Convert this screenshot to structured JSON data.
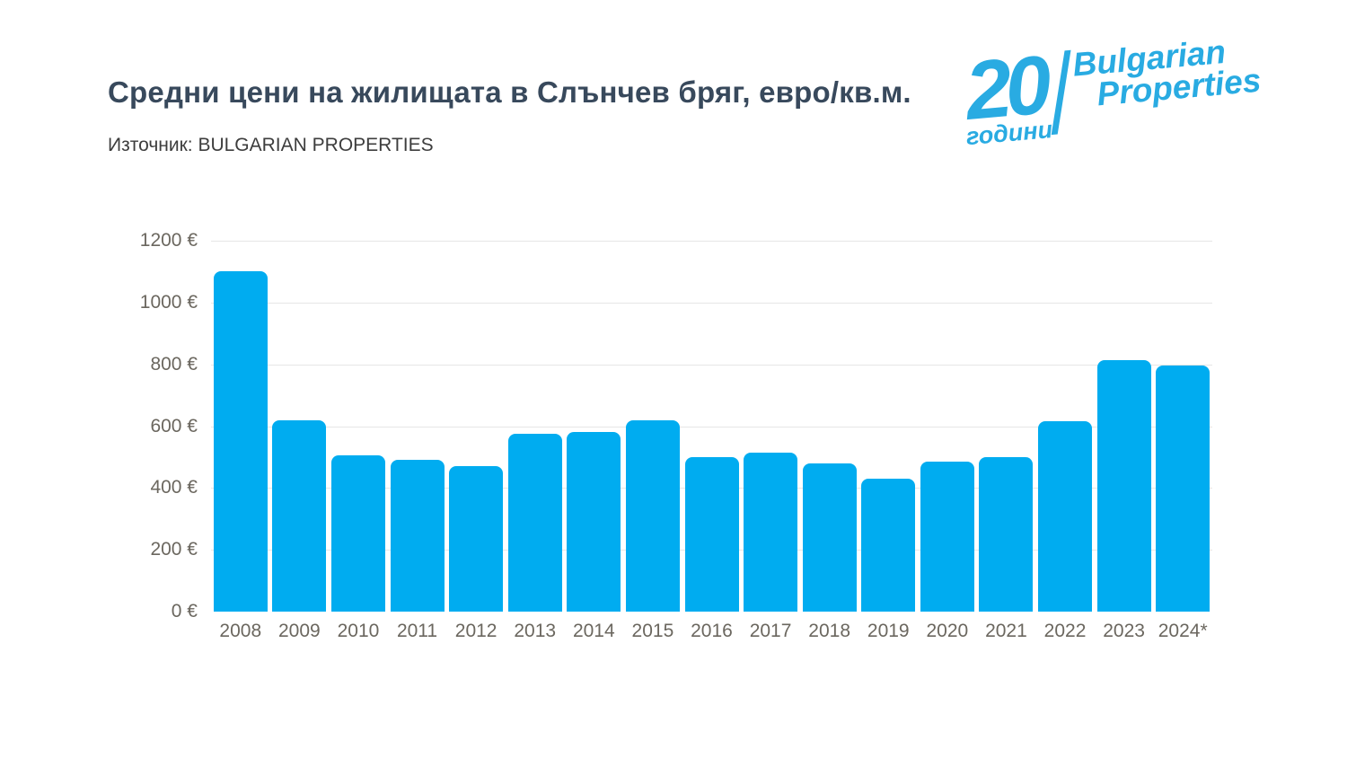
{
  "header": {
    "title": "Средни цени на жилищата в Слънчев бряг, евро/кв.м.",
    "source": "Източник: BULGARIAN PROPERTIES"
  },
  "logo": {
    "number": "20",
    "years_label": "години",
    "brand_line1": "Bulgarian",
    "brand_line2": "Properties",
    "color": "#29abe2"
  },
  "chart_data": {
    "type": "bar",
    "title": "Средни цени на жилищата в Слънчев бряг, евро/кв.м.",
    "source_label": "Източник: BULGARIAN PROPERTIES",
    "unit": "евро/кв.м.",
    "categories": [
      "2008",
      "2009",
      "2010",
      "2011",
      "2012",
      "2013",
      "2014",
      "2015",
      "2016",
      "2017",
      "2018",
      "2019",
      "2020",
      "2021",
      "2022",
      "2023",
      "2024*"
    ],
    "values": [
      1100,
      620,
      505,
      490,
      470,
      575,
      580,
      620,
      500,
      515,
      480,
      430,
      485,
      500,
      615,
      813,
      795
    ],
    "xlabel": "",
    "ylabel": "",
    "ylim": [
      0,
      1200
    ],
    "ytick_step": 200,
    "ytick_suffix": " €",
    "grid": true,
    "legend": "none",
    "bar_color": "#00acf0",
    "grid_color": "#e6e6e6",
    "axis_label_color": "#6b675f",
    "title_color": "#38495c"
  }
}
